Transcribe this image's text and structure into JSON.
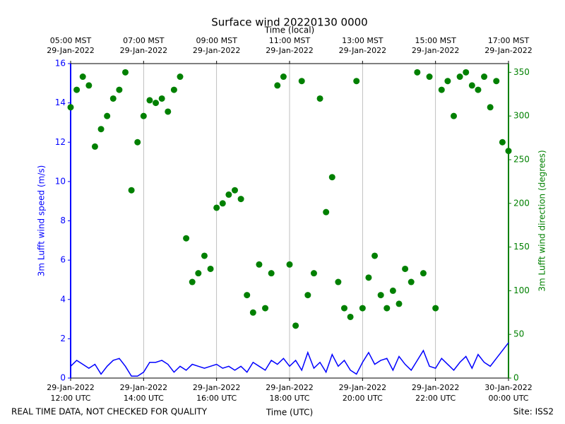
{
  "chart_data": {
    "type": "line",
    "title": "Surface wind 20220130 0000",
    "x_label": "Time (UTC)",
    "x2_label": "Time (local)",
    "y_label": "3m Lufft wind speed (m/s)",
    "y2_label": "3m Lufft wind direction (degrees)",
    "footer_left": "REAL TIME DATA, NOT CHECKED FOR QUALITY",
    "footer_right": "Site: ISS2",
    "grid": true,
    "xlim": [
      "2022-01-29T12:00",
      "2022-01-30T00:00"
    ],
    "xticks": [
      {
        "value": "2022-01-29T12:00",
        "label": "29-Jan-2022\n12:00 UTC"
      },
      {
        "value": "2022-01-29T14:00",
        "label": "29-Jan-2022\n14:00 UTC"
      },
      {
        "value": "2022-01-29T16:00",
        "label": "29-Jan-2022\n16:00 UTC"
      },
      {
        "value": "2022-01-29T18:00",
        "label": "29-Jan-2022\n18:00 UTC"
      },
      {
        "value": "2022-01-29T20:00",
        "label": "29-Jan-2022\n20:00 UTC"
      },
      {
        "value": "2022-01-29T22:00",
        "label": "29-Jan-2022\n22:00 UTC"
      },
      {
        "value": "2022-01-30T00:00",
        "label": "30-Jan-2022\n00:00 UTC"
      }
    ],
    "x2ticks": [
      {
        "value": "2022-01-29T12:00",
        "label": "05:00 MST\n29-Jan-2022"
      },
      {
        "value": "2022-01-29T14:00",
        "label": "07:00 MST\n29-Jan-2022"
      },
      {
        "value": "2022-01-29T16:00",
        "label": "09:00 MST\n29-Jan-2022"
      },
      {
        "value": "2022-01-29T18:00",
        "label": "11:00 MST\n29-Jan-2022"
      },
      {
        "value": "2022-01-29T20:00",
        "label": "13:00 MST\n29-Jan-2022"
      },
      {
        "value": "2022-01-29T22:00",
        "label": "15:00 MST\n29-Jan-2022"
      },
      {
        "value": "2022-01-30T00:00",
        "label": "17:00 MST\n29-Jan-2022"
      }
    ],
    "ylim": [
      0,
      16
    ],
    "yticks": [
      0,
      2,
      4,
      6,
      8,
      10,
      12,
      14,
      16
    ],
    "y2lim": [
      0,
      360
    ],
    "y2ticks": [
      0,
      50,
      100,
      150,
      200,
      250,
      300,
      350
    ],
    "y_color": "#0000ff",
    "y2_color": "#008000",
    "x": [
      "2022-01-29T12:00",
      "2022-01-29T12:10",
      "2022-01-29T12:20",
      "2022-01-29T12:30",
      "2022-01-29T12:40",
      "2022-01-29T12:50",
      "2022-01-29T13:00",
      "2022-01-29T13:10",
      "2022-01-29T13:20",
      "2022-01-29T13:30",
      "2022-01-29T13:40",
      "2022-01-29T13:50",
      "2022-01-29T14:00",
      "2022-01-29T14:10",
      "2022-01-29T14:20",
      "2022-01-29T14:30",
      "2022-01-29T14:40",
      "2022-01-29T14:50",
      "2022-01-29T15:00",
      "2022-01-29T15:10",
      "2022-01-29T15:20",
      "2022-01-29T15:30",
      "2022-01-29T15:40",
      "2022-01-29T15:50",
      "2022-01-29T16:00",
      "2022-01-29T16:10",
      "2022-01-29T16:20",
      "2022-01-29T16:30",
      "2022-01-29T16:40",
      "2022-01-29T16:50",
      "2022-01-29T17:00",
      "2022-01-29T17:10",
      "2022-01-29T17:20",
      "2022-01-29T17:30",
      "2022-01-29T17:40",
      "2022-01-29T17:50",
      "2022-01-29T18:00",
      "2022-01-29T18:10",
      "2022-01-29T18:20",
      "2022-01-29T18:30",
      "2022-01-29T18:40",
      "2022-01-29T18:50",
      "2022-01-29T19:00",
      "2022-01-29T19:10",
      "2022-01-29T19:20",
      "2022-01-29T19:30",
      "2022-01-29T19:40",
      "2022-01-29T19:50",
      "2022-01-29T20:00",
      "2022-01-29T20:10",
      "2022-01-29T20:20",
      "2022-01-29T20:30",
      "2022-01-29T20:40",
      "2022-01-29T20:50",
      "2022-01-29T21:00",
      "2022-01-29T21:10",
      "2022-01-29T21:20",
      "2022-01-29T21:30",
      "2022-01-29T21:40",
      "2022-01-29T21:50",
      "2022-01-29T22:00",
      "2022-01-29T22:10",
      "2022-01-29T22:20",
      "2022-01-29T22:30",
      "2022-01-29T22:40",
      "2022-01-29T22:50",
      "2022-01-29T23:00",
      "2022-01-29T23:10",
      "2022-01-29T23:20",
      "2022-01-29T23:30",
      "2022-01-29T23:40",
      "2022-01-29T23:50",
      "2022-01-30T00:00"
    ],
    "series": [
      {
        "type": "line",
        "color": "#0000ff",
        "values": [
          0.6,
          0.9,
          0.7,
          0.5,
          0.7,
          0.2,
          0.6,
          0.9,
          1.0,
          0.6,
          0.1,
          0.1,
          0.3,
          0.8,
          0.8,
          0.9,
          0.7,
          0.3,
          0.6,
          0.4,
          0.7,
          0.6,
          0.5,
          0.6,
          0.7,
          0.5,
          0.6,
          0.4,
          0.6,
          0.3,
          0.8,
          0.6,
          0.4,
          0.9,
          0.7,
          1.0,
          0.6,
          0.9,
          0.4,
          1.3,
          0.5,
          0.8,
          0.3,
          1.2,
          0.6,
          0.9,
          0.4,
          0.2,
          0.8,
          1.3,
          0.7,
          0.9,
          1.0,
          0.4,
          1.1,
          0.7,
          0.4,
          0.9,
          1.4,
          0.6,
          0.5,
          1.0,
          0.7,
          0.4,
          0.8,
          1.1,
          0.5,
          1.2,
          0.8,
          0.6,
          1.0,
          1.4,
          1.8
        ]
      },
      {
        "type": "scatter",
        "axis": "y2",
        "color": "#008000",
        "values": [
          310,
          330,
          345,
          335,
          265,
          285,
          300,
          320,
          330,
          350,
          215,
          270,
          300,
          318,
          315,
          320,
          305,
          330,
          345,
          160,
          110,
          120,
          140,
          125,
          195,
          200,
          210,
          215,
          205,
          95,
          75,
          130,
          80,
          120,
          335,
          345,
          130,
          60,
          340,
          95,
          120,
          320,
          190,
          230,
          110,
          80,
          70,
          340,
          80,
          115,
          140,
          95,
          80,
          100,
          85,
          125,
          110,
          350,
          120,
          345,
          80,
          330,
          340,
          300,
          345,
          350,
          335,
          330,
          345,
          310,
          340,
          270,
          260
        ]
      }
    ]
  }
}
